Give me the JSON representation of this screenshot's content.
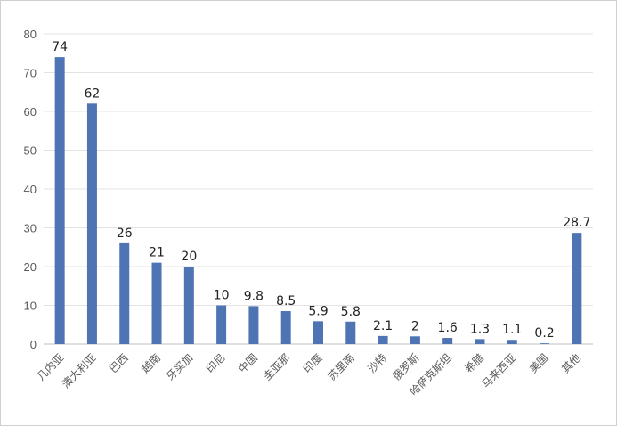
{
  "chart_data": {
    "type": "bar",
    "title": "",
    "xlabel": "",
    "ylabel": "",
    "ylim": [
      0,
      80
    ],
    "yticks": [
      0,
      10,
      20,
      30,
      40,
      50,
      60,
      70,
      80
    ],
    "grid": true,
    "legend": "none",
    "bar_color": "#4f74b4",
    "categories": [
      "几内亚",
      "澳大利亚",
      "巴西",
      "越南",
      "牙买加",
      "印尼",
      "中国",
      "圭亚那",
      "印度",
      "苏里南",
      "沙特",
      "俄罗斯",
      "哈萨克斯坦",
      "希腊",
      "马来西亚",
      "美国",
      "其他"
    ],
    "values": [
      74,
      62,
      26,
      21,
      20,
      10,
      9.8,
      8.5,
      5.9,
      5.8,
      2.1,
      2,
      1.6,
      1.3,
      1.1,
      0.2,
      28.7
    ]
  }
}
